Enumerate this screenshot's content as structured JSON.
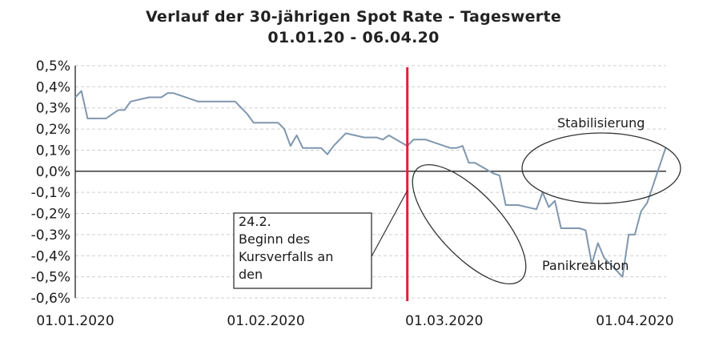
{
  "chart_data": {
    "type": "line",
    "title": "Verlauf der 30-jährigen Spot Rate - Tageswerte",
    "subtitle": "01.01.20 - 06.04.20",
    "xlabel": "",
    "ylabel": "",
    "ylim": [
      -0.6,
      0.5
    ],
    "yticks": [
      "0,5%",
      "0,4%",
      "0,3%",
      "0,2%",
      "0,1%",
      "0,0%",
      "-0,1%",
      "-0,2%",
      "-0,3%",
      "-0,4%",
      "-0,5%",
      "-0,6%"
    ],
    "xticks": [
      "01.01.2020",
      "01.02.2020",
      "01.03.2020",
      "01.04.2020"
    ],
    "grid": true,
    "line_color": "#7f97ae",
    "marker_color": "#dd2233",
    "series": [
      {
        "x": [
          "2020-01-01",
          "2020-01-02",
          "2020-01-03",
          "2020-01-06",
          "2020-01-07",
          "2020-01-08",
          "2020-01-09",
          "2020-01-10",
          "2020-01-13",
          "2020-01-14",
          "2020-01-15",
          "2020-01-16",
          "2020-01-17",
          "2020-01-20",
          "2020-01-21",
          "2020-01-22",
          "2020-01-23",
          "2020-01-24",
          "2020-01-27",
          "2020-01-28",
          "2020-01-29",
          "2020-01-30",
          "2020-01-31",
          "2020-02-03",
          "2020-02-04",
          "2020-02-05",
          "2020-02-06",
          "2020-02-07",
          "2020-02-10",
          "2020-02-11",
          "2020-02-12",
          "2020-02-13",
          "2020-02-14",
          "2020-02-17",
          "2020-02-18",
          "2020-02-19",
          "2020-02-20",
          "2020-02-21",
          "2020-02-24",
          "2020-02-25",
          "2020-02-26",
          "2020-02-27",
          "2020-02-28",
          "2020-03-02",
          "2020-03-03",
          "2020-03-04",
          "2020-03-05",
          "2020-03-06",
          "2020-03-09",
          "2020-03-10",
          "2020-03-11",
          "2020-03-12",
          "2020-03-13",
          "2020-03-16",
          "2020-03-17",
          "2020-03-18",
          "2020-03-19",
          "2020-03-20",
          "2020-03-23",
          "2020-03-24",
          "2020-03-25",
          "2020-03-26",
          "2020-03-27",
          "2020-03-30",
          "2020-03-31",
          "2020-04-01",
          "2020-04-02",
          "2020-04-03",
          "2020-04-06"
        ],
        "values": [
          0.35,
          0.38,
          0.25,
          0.25,
          0.27,
          0.29,
          0.29,
          0.33,
          0.35,
          0.35,
          0.35,
          0.37,
          0.37,
          0.34,
          0.33,
          0.33,
          0.33,
          0.33,
          0.33,
          0.3,
          0.27,
          0.23,
          0.23,
          0.23,
          0.2,
          0.12,
          0.17,
          0.11,
          0.11,
          0.08,
          0.12,
          0.15,
          0.18,
          0.16,
          0.16,
          0.16,
          0.15,
          0.17,
          0.12,
          0.15,
          0.15,
          0.15,
          0.14,
          0.11,
          0.11,
          0.12,
          0.04,
          0.04,
          -0.01,
          -0.02,
          -0.16,
          -0.16,
          -0.16,
          -0.18,
          -0.1,
          -0.17,
          -0.14,
          -0.27,
          -0.27,
          -0.28,
          -0.44,
          -0.34,
          -0.41,
          -0.5,
          -0.3,
          -0.3,
          -0.19,
          -0.15,
          0.11
        ]
      }
    ],
    "event_line": {
      "x": "2020-02-24",
      "label": [
        "24.2.",
        "Beginn des",
        "Kursverfalls an",
        "den"
      ]
    },
    "annotations": [
      "Stabilisierung",
      "Panikreaktion"
    ]
  }
}
